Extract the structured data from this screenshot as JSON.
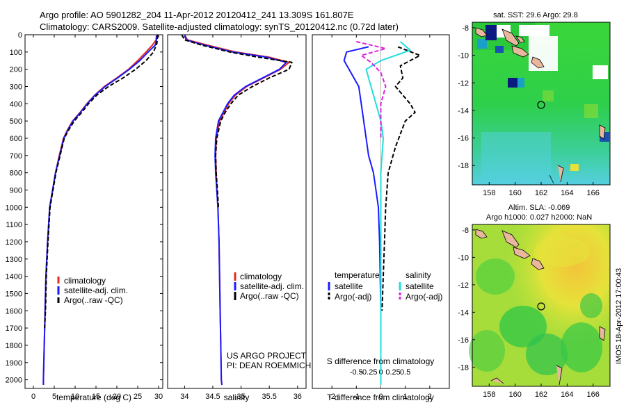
{
  "header": {
    "title_line1": "Argo profile: AO 5901282_204 11-Apr-2012 20120412_241 13.309S 161.807E",
    "title_line2": "Climatology: CARS2009. Satellite-adjusted climatology: synTS_20120412.nc (0.72d later)"
  },
  "footer": {
    "project": "US ARGO PROJECT",
    "pi": "PI: DEAN ROEMMICH",
    "imos_stamp": "IMOS 18-Apr-2012 17:00:43"
  },
  "colors": {
    "climatology": "#e8281e",
    "satellite": "#1a1aff",
    "argo": "#000000",
    "sal_satellite": "#22dddd",
    "sal_argo": "#dd22dd"
  },
  "chart_data": [
    {
      "type": "line",
      "xlabel": "temperature (deg C)",
      "ylabel": "",
      "xlim": [
        -2,
        31
      ],
      "ylim": [
        2050,
        0
      ],
      "xticks": [
        0,
        5,
        10,
        15,
        20,
        25,
        30
      ],
      "yticks": [
        0,
        100,
        200,
        300,
        400,
        500,
        600,
        700,
        800,
        900,
        1000,
        1100,
        1200,
        1300,
        1400,
        1500,
        1600,
        1700,
        1800,
        1900,
        2000
      ],
      "legend_position": "bottom-left",
      "series": [
        {
          "name": "climatology",
          "style": "solid",
          "color": "#e8281e",
          "x": [
            29.5,
            29.4,
            28.5,
            27,
            25,
            22.8,
            20,
            17,
            14.7,
            12.8,
            11.2,
            9.4,
            8.2,
            7.2,
            6.2,
            5.3,
            4.6,
            3.9,
            3.4,
            3.0,
            2.8,
            2.6,
            2.5,
            2.4,
            2.4
          ],
          "y": [
            0,
            30,
            60,
            100,
            150,
            200,
            250,
            300,
            350,
            400,
            450,
            500,
            550,
            600,
            700,
            800,
            900,
            1000,
            1200,
            1400,
            1600,
            1800,
            1900,
            2000,
            2030
          ]
        },
        {
          "name": "satellite-adj. clim.",
          "style": "solid",
          "color": "#1a1aff",
          "x": [
            29.6,
            29.5,
            29.2,
            27.5,
            25.5,
            23,
            20.2,
            17.2,
            14.8,
            12.9,
            11.3,
            9.5,
            8.3,
            7.3,
            6.3,
            5.3,
            4.6,
            3.9,
            3.4,
            3.0,
            2.8,
            2.6,
            2.5,
            2.4,
            2.4
          ],
          "y": [
            0,
            30,
            60,
            100,
            150,
            200,
            250,
            300,
            350,
            400,
            450,
            500,
            550,
            600,
            700,
            800,
            900,
            1000,
            1200,
            1400,
            1600,
            1800,
            1900,
            2000,
            2030
          ]
        },
        {
          "name": "Argo(..raw -QC)",
          "style": "dashed",
          "color": "#000000",
          "x": [
            29.8,
            29.7,
            29.6,
            28.8,
            27,
            24.5,
            21.5,
            18,
            15.2,
            13.2,
            11.6,
            9.8,
            8.5,
            7.4,
            6.4,
            5.4,
            4.7,
            4.0,
            3.5,
            3.1,
            2.9,
            2.7
          ],
          "y": [
            0,
            20,
            50,
            100,
            150,
            200,
            250,
            300,
            350,
            400,
            450,
            500,
            550,
            600,
            700,
            800,
            900,
            1000,
            1200,
            1400,
            1600,
            1700
          ]
        }
      ]
    },
    {
      "type": "line",
      "xlabel": "salinity",
      "ylabel": "",
      "xlim": [
        33.7,
        36.15
      ],
      "ylim": [
        2050,
        0
      ],
      "xticks": [
        34,
        34.5,
        35,
        35.5,
        36
      ],
      "legend_position": "bottom-right",
      "series": [
        {
          "name": "climatology",
          "style": "solid",
          "color": "#e8281e",
          "x": [
            34.0,
            34.05,
            34.4,
            34.9,
            35.5,
            35.85,
            35.7,
            35.4,
            35.1,
            34.9,
            34.78,
            34.7,
            34.62,
            34.56,
            34.55,
            34.56,
            34.57,
            34.59,
            34.61,
            34.62,
            34.63,
            34.64,
            34.65,
            34.66
          ],
          "y": [
            0,
            30,
            60,
            100,
            130,
            160,
            200,
            250,
            300,
            350,
            400,
            450,
            500,
            600,
            700,
            800,
            900,
            1000,
            1200,
            1400,
            1600,
            1800,
            2000,
            2030
          ]
        },
        {
          "name": "satellite-adj. clim.",
          "style": "solid",
          "color": "#1a1aff",
          "x": [
            34.0,
            34.03,
            34.35,
            34.85,
            35.45,
            35.8,
            35.68,
            35.38,
            35.08,
            34.88,
            34.76,
            34.68,
            34.6,
            34.55,
            34.54,
            34.55,
            34.57,
            34.59,
            34.61,
            34.62,
            34.63,
            34.64,
            34.65,
            34.66
          ],
          "y": [
            0,
            30,
            60,
            100,
            130,
            160,
            200,
            250,
            300,
            350,
            400,
            450,
            500,
            600,
            700,
            800,
            900,
            1000,
            1200,
            1400,
            1600,
            1800,
            2000,
            2030
          ]
        },
        {
          "name": "Argo(..raw -QC)",
          "style": "dashed",
          "color": "#000000",
          "x": [
            33.95,
            34.0,
            34.3,
            34.8,
            35.3,
            35.9,
            35.85,
            35.5,
            35.2,
            34.95,
            34.82,
            34.72,
            34.64,
            34.57,
            34.55,
            34.56,
            34.58,
            34.6
          ],
          "y": [
            0,
            30,
            60,
            100,
            130,
            160,
            200,
            250,
            300,
            350,
            400,
            450,
            500,
            600,
            700,
            800,
            900,
            1000
          ]
        }
      ]
    },
    {
      "type": "line",
      "xlabel": "T difference from climatology",
      "x2label": "S difference from climatology",
      "xlim": [
        -2.8,
        2.8
      ],
      "ylim": [
        2050,
        0
      ],
      "xticks": [
        -2,
        -1,
        0,
        1,
        2
      ],
      "x2ticks": [
        -0.5,
        -0.25,
        0,
        0.25,
        0.5
      ],
      "legend_position": "middle",
      "legend_groups": [
        "temperature",
        "salinity"
      ],
      "series": [
        {
          "name": "satellite",
          "group": "temperature",
          "style": "solid",
          "color": "#1a1aff",
          "x": [
            -0.5,
            -1.4,
            -1.5,
            -1.3,
            -1.1,
            -0.9,
            -0.8,
            -0.7,
            -0.6,
            -0.5,
            -0.3,
            -0.2,
            -0.1,
            -0.05,
            0,
            0
          ],
          "y": [
            70,
            100,
            150,
            200,
            250,
            300,
            400,
            500,
            600,
            700,
            800,
            900,
            1000,
            1200,
            1600,
            2030
          ]
        },
        {
          "name": "Argo(-adj)",
          "group": "temperature",
          "style": "dashed",
          "color": "#000000",
          "x": [
            0.7,
            1.6,
            0.8,
            0.9,
            0.6,
            1.2,
            1.4,
            1.0,
            0.6,
            0.3,
            0.25,
            0.2,
            0.15,
            0.1,
            0.05
          ],
          "y": [
            70,
            120,
            180,
            250,
            300,
            400,
            450,
            500,
            650,
            800,
            900,
            1000,
            1200,
            1400,
            1600
          ]
        },
        {
          "name": "satellite",
          "group": "salinity",
          "style": "solid",
          "color": "#22dddd",
          "x": [
            0.4,
            0.6,
            0.3,
            0.0,
            -0.3,
            -0.2,
            -0.1,
            0.0,
            0.05,
            0.0,
            0.0,
            0.0
          ],
          "y": [
            40,
            90,
            120,
            150,
            200,
            300,
            400,
            500,
            600,
            800,
            1200,
            2030
          ]
        },
        {
          "name": "Argo(-adj)",
          "group": "salinity",
          "style": "dashed",
          "color": "#dd22dd",
          "x": [
            -0.5,
            0.1,
            -0.4,
            -0.2,
            0.0,
            0.1,
            0.0,
            0.0,
            0.0
          ],
          "y": [
            40,
            80,
            120,
            160,
            220,
            300,
            400,
            500,
            600
          ]
        }
      ]
    },
    {
      "type": "heatmap",
      "title": "sat. SST: 29.6 Argo: 29.8",
      "xlim": [
        156.7,
        167.3
      ],
      "ylim": [
        -19.4,
        -7.6
      ],
      "xticks": [
        158,
        160,
        162,
        164,
        166
      ],
      "yticks": [
        -8,
        -10,
        -12,
        -14,
        -16,
        -18
      ],
      "marker": {
        "lon": 161.8,
        "lat": -13.3
      }
    },
    {
      "type": "heatmap",
      "title": "Altim. SLA: -0.069",
      "subtitle": "Argo h1000: 0.027 h2000: NaN",
      "xlim": [
        156.7,
        167.3
      ],
      "ylim": [
        -19.4,
        -7.6
      ],
      "xticks": [
        158,
        160,
        162,
        164,
        166
      ],
      "yticks": [
        -8,
        -10,
        -12,
        -14,
        -16,
        -18
      ],
      "marker": {
        "lon": 161.8,
        "lat": -13.3
      }
    }
  ]
}
